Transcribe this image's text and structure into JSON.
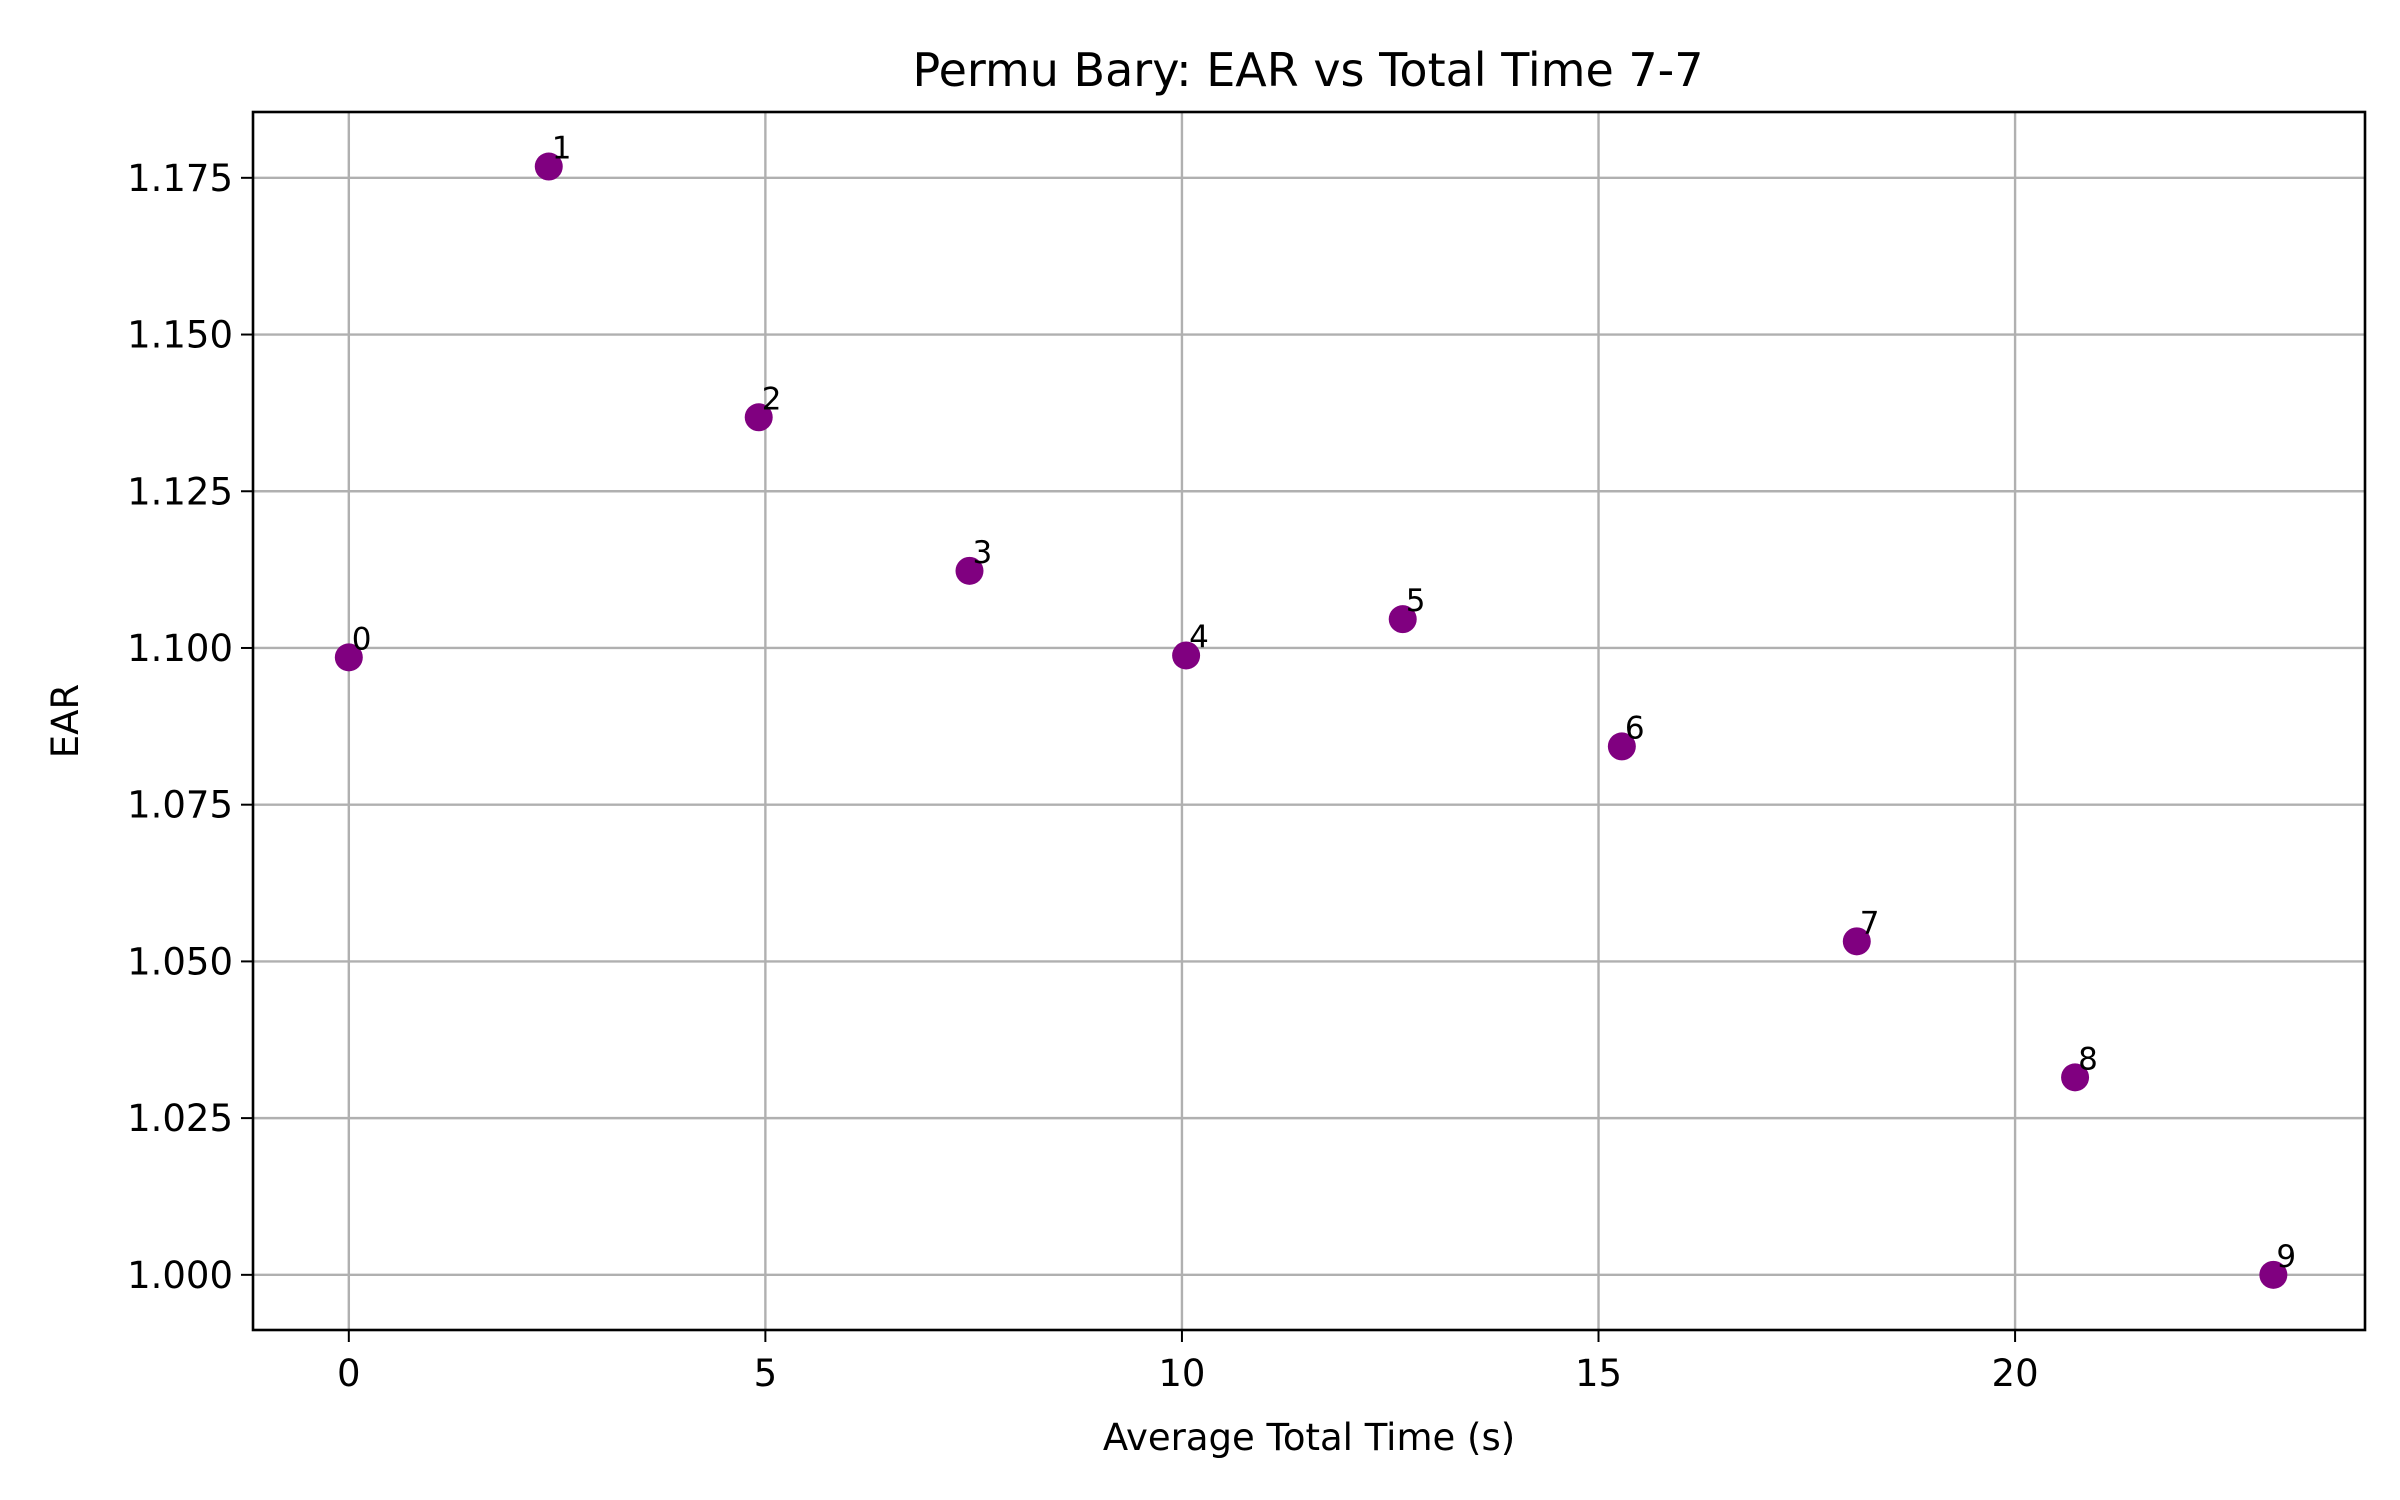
{
  "chart_data": {
    "type": "scatter",
    "title": "Permu Bary: EAR vs Total Time 7-7",
    "xlabel": "Average Total Time (s)",
    "ylabel": "EAR",
    "xlim": [
      -1.15,
      24.2
    ],
    "ylim": [
      0.9912,
      1.1855
    ],
    "x_ticks": [
      0,
      5,
      10,
      15,
      20
    ],
    "x_tick_labels": [
      "0",
      "5",
      "10",
      "15",
      "20"
    ],
    "y_ticks": [
      1.0,
      1.025,
      1.05,
      1.075,
      1.1,
      1.125,
      1.15,
      1.175
    ],
    "y_tick_labels": [
      "1.000",
      "1.025",
      "1.050",
      "1.075",
      "1.100",
      "1.125",
      "1.150",
      "1.175"
    ],
    "grid": true,
    "marker_color": "#800080",
    "points": [
      {
        "label": "0",
        "x": 0.0,
        "y": 1.0985
      },
      {
        "label": "1",
        "x": 2.4,
        "y": 1.1768
      },
      {
        "label": "2",
        "x": 4.92,
        "y": 1.1368
      },
      {
        "label": "3",
        "x": 7.45,
        "y": 1.1123
      },
      {
        "label": "4",
        "x": 10.05,
        "y": 1.0988
      },
      {
        "label": "5",
        "x": 12.65,
        "y": 1.1046
      },
      {
        "label": "6",
        "x": 15.28,
        "y": 1.0843
      },
      {
        "label": "7",
        "x": 18.1,
        "y": 1.0532
      },
      {
        "label": "8",
        "x": 20.72,
        "y": 1.0315
      },
      {
        "label": "9",
        "x": 23.1,
        "y": 1.0
      }
    ]
  }
}
